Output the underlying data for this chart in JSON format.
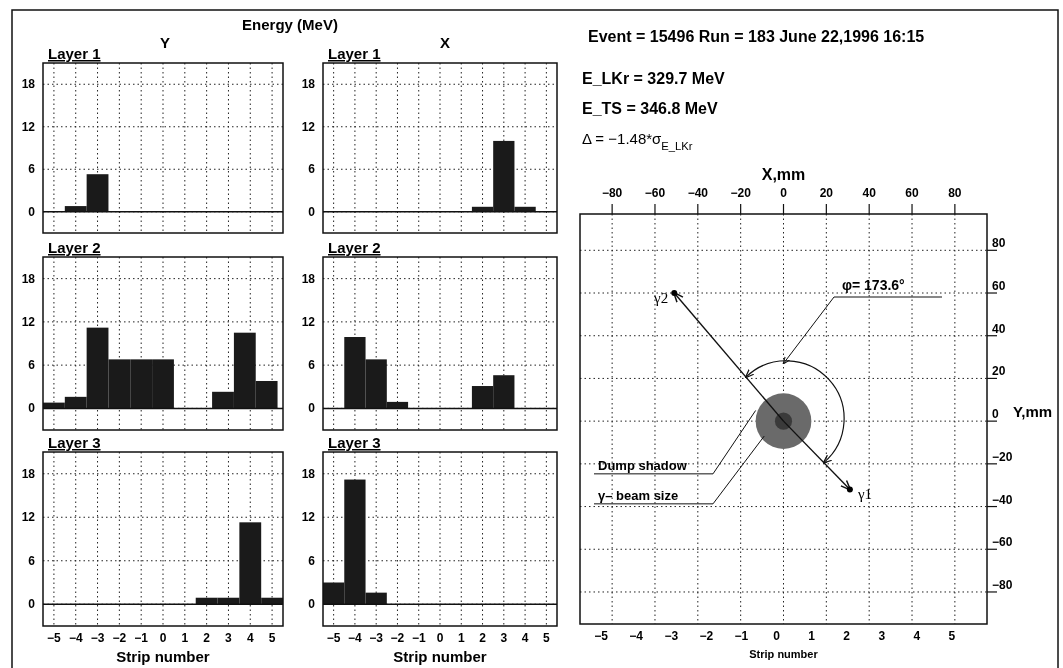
{
  "chart_data": [
    {
      "type": "histogram",
      "title": "Layer 1",
      "subtitle": "Y",
      "annotations": [
        "Energy (MeV)"
      ],
      "bins": [
        -5.5,
        -4.5,
        -3.5,
        -2.5,
        -1.5,
        -0.5,
        0.5,
        1.5,
        2.5,
        3.5,
        4.5,
        5.5
      ],
      "values": [
        0,
        0.8,
        5.3,
        0,
        0,
        0,
        0,
        0,
        0,
        0,
        0
      ],
      "color": "#1a1a1a",
      "xlim": [
        -5.5,
        5.5
      ],
      "xticks": [
        {
          "value": -5,
          "label": null
        },
        {
          "value": -4,
          "label": null
        },
        {
          "value": -3,
          "label": null
        },
        {
          "value": -2,
          "label": null
        },
        {
          "value": -1,
          "label": null
        },
        {
          "value": 0,
          "label": null
        },
        {
          "value": 1,
          "label": null
        },
        {
          "value": 2,
          "label": null
        },
        {
          "value": 3,
          "label": null
        },
        {
          "value": 4,
          "label": null
        },
        {
          "value": 5,
          "label": null
        }
      ],
      "ylim": [
        -3,
        21
      ],
      "yticks": [
        0,
        6,
        12,
        18
      ],
      "grid": true,
      "tick_labels": "y"
    },
    {
      "type": "histogram",
      "title": "Layer 1",
      "subtitle": "X",
      "bins": [
        -5.5,
        -4.5,
        -3.5,
        -2.5,
        -1.5,
        -0.5,
        0.5,
        1.5,
        2.5,
        3.5,
        4.5,
        5.5
      ],
      "values": [
        0,
        0,
        0,
        0,
        0,
        0,
        0,
        0.7,
        10,
        0.7,
        0
      ],
      "color": "#1a1a1a",
      "xlim": [
        -5.5,
        5.5
      ],
      "xticks": [
        {
          "value": -5,
          "label": null
        },
        {
          "value": -4,
          "label": null
        },
        {
          "value": -3,
          "label": null
        },
        {
          "value": -2,
          "label": null
        },
        {
          "value": -1,
          "label": null
        },
        {
          "value": 0,
          "label": null
        },
        {
          "value": 1,
          "label": null
        },
        {
          "value": 2,
          "label": null
        },
        {
          "value": 3,
          "label": null
        },
        {
          "value": 4,
          "label": null
        },
        {
          "value": 5,
          "label": null
        }
      ],
      "ylim": [
        -3,
        21
      ],
      "yticks": [
        0,
        6,
        12,
        18
      ],
      "grid": true,
      "tick_labels": "y"
    },
    {
      "type": "histogram",
      "title": "Layer 2",
      "bins": [
        -5.5,
        -4.5,
        -3.5,
        -2.5,
        -1.5,
        -0.5,
        0.5,
        2.25,
        3.25,
        4.25,
        5.25
      ],
      "values": [
        0.8,
        1.6,
        11.2,
        6.8,
        6.8,
        6.8,
        0,
        2.3,
        10.5,
        3.8
      ],
      "color": "#1a1a1a",
      "xlim": [
        -5.5,
        5.5
      ],
      "xticks": [
        {
          "value": -5,
          "label": null
        },
        {
          "value": -4,
          "label": null
        },
        {
          "value": -3,
          "label": null
        },
        {
          "value": -2,
          "label": null
        },
        {
          "value": -1,
          "label": null
        },
        {
          "value": 0,
          "label": null
        },
        {
          "value": 1,
          "label": null
        },
        {
          "value": 2,
          "label": null
        },
        {
          "value": 3,
          "label": null
        },
        {
          "value": 4,
          "label": null
        },
        {
          "value": 5,
          "label": null
        }
      ],
      "ylim": [
        -3,
        21
      ],
      "yticks": [
        0,
        6,
        12,
        18
      ],
      "grid": true,
      "tick_labels": "y"
    },
    {
      "type": "histogram",
      "title": "Layer 2",
      "bins": [
        -5.5,
        -4.5,
        -3.5,
        -2.5,
        -1.5,
        -0.5,
        0.5,
        1.5,
        2.5,
        3.5,
        4.5,
        5.5
      ],
      "values": [
        0,
        9.9,
        6.8,
        0.9,
        0,
        0,
        0,
        3.1,
        4.6,
        0,
        0
      ],
      "color": "#1a1a1a",
      "xlim": [
        -5.5,
        5.5
      ],
      "xticks": [
        {
          "value": -5,
          "label": null
        },
        {
          "value": -4,
          "label": null
        },
        {
          "value": -3,
          "label": null
        },
        {
          "value": -2,
          "label": null
        },
        {
          "value": -1,
          "label": null
        },
        {
          "value": 0,
          "label": null
        },
        {
          "value": 1,
          "label": null
        },
        {
          "value": 2,
          "label": null
        },
        {
          "value": 3,
          "label": null
        },
        {
          "value": 4,
          "label": null
        },
        {
          "value": 5,
          "label": null
        }
      ],
      "ylim": [
        -3,
        21
      ],
      "yticks": [
        0,
        6,
        12,
        18
      ],
      "grid": true,
      "tick_labels": "y"
    },
    {
      "type": "histogram",
      "title": "Layer 3",
      "xlabel": "Strip number",
      "bins": [
        -5.5,
        -4.5,
        -3.5,
        -2.5,
        -1.5,
        -0.5,
        0.5,
        1.5,
        2.5,
        3.5,
        4.5,
        5.5
      ],
      "values": [
        0,
        0,
        0,
        0,
        0,
        0,
        0,
        0.9,
        0.9,
        11.3,
        0.9
      ],
      "color": "#1a1a1a",
      "xlim": [
        -5.5,
        5.5
      ],
      "xticks": [
        {
          "value": -5,
          "label": "−5"
        },
        {
          "value": -4,
          "label": "−4"
        },
        {
          "value": -3,
          "label": "−3"
        },
        {
          "value": -2,
          "label": "−2"
        },
        {
          "value": -1,
          "label": "−1"
        },
        0,
        1,
        2,
        3,
        4,
        5
      ],
      "ylim": [
        -3,
        21
      ],
      "yticks": [
        0,
        6,
        12,
        18
      ],
      "grid": true
    },
    {
      "type": "histogram",
      "title": "Layer 3",
      "xlabel": "Strip number",
      "bins": [
        -5.5,
        -4.5,
        -3.5,
        -2.5,
        -1.5,
        -0.5,
        0.5,
        1.5,
        2.5,
        3.5,
        4.5,
        5.5
      ],
      "values": [
        3,
        17.2,
        1.6,
        0,
        0,
        0,
        0,
        0,
        0,
        0,
        0
      ],
      "color": "#1a1a1a",
      "xlim": [
        -5.5,
        5.5
      ],
      "xticks": [
        {
          "value": -5,
          "label": "−5"
        },
        {
          "value": -4,
          "label": "−4"
        },
        {
          "value": -3,
          "label": "−3"
        },
        {
          "value": -2,
          "label": "−2"
        },
        {
          "value": -1,
          "label": "−1"
        },
        0,
        1,
        2,
        3,
        4,
        5
      ],
      "ylim": [
        -3,
        21
      ],
      "yticks": [
        0,
        6,
        12,
        18
      ],
      "grid": true
    },
    {
      "type": "scatter",
      "title": "Event = 15496  Run = 183  June 22,1996  16:15",
      "annotations": [
        "E_LKr = 329.7 MeV",
        "E_TS  =  346.8 MeV",
        "Δ = −1.48*σ$_{E_LKr}$",
        "φ= 173.6°",
        "Dump shadow",
        "γ– beam size"
      ],
      "xlabel": "X,mm",
      "x2label": "Strip number",
      "ylabel": "Y,mm",
      "xlim": [
        -95,
        95
      ],
      "xticks": [
        {
          "value": -80,
          "label": "−80"
        },
        {
          "value": -60,
          "label": "−60"
        },
        {
          "value": -40,
          "label": "−40"
        },
        {
          "value": -20,
          "label": "−20"
        },
        0,
        20,
        40,
        60,
        80
      ],
      "x2lim": [
        -5.6,
        6.0
      ],
      "x2ticks": [
        {
          "value": -5,
          "label": "−5"
        },
        {
          "value": -4,
          "label": "−4"
        },
        {
          "value": -3,
          "label": "−3"
        },
        {
          "value": -2,
          "label": "−2"
        },
        {
          "value": -1,
          "label": "−1"
        },
        0,
        1,
        2,
        3,
        4,
        5
      ],
      "ylim": [
        -95,
        97
      ],
      "yticks": [
        {
          "value": -80,
          "label": "−80"
        },
        {
          "value": -60,
          "label": "−60"
        },
        {
          "value": -40,
          "label": "−40"
        },
        {
          "value": -20,
          "label": "−20"
        },
        0,
        20,
        40,
        60,
        80
      ],
      "grid": true,
      "marker": "circle",
      "series": [
        {
          "name": "γ2",
          "color": "#000000",
          "x": [
            -51
          ],
          "values": [
            60
          ]
        },
        {
          "name": "γ1",
          "color": "#000000",
          "x": [
            31
          ],
          "values": [
            -32
          ]
        }
      ]
    }
  ]
}
